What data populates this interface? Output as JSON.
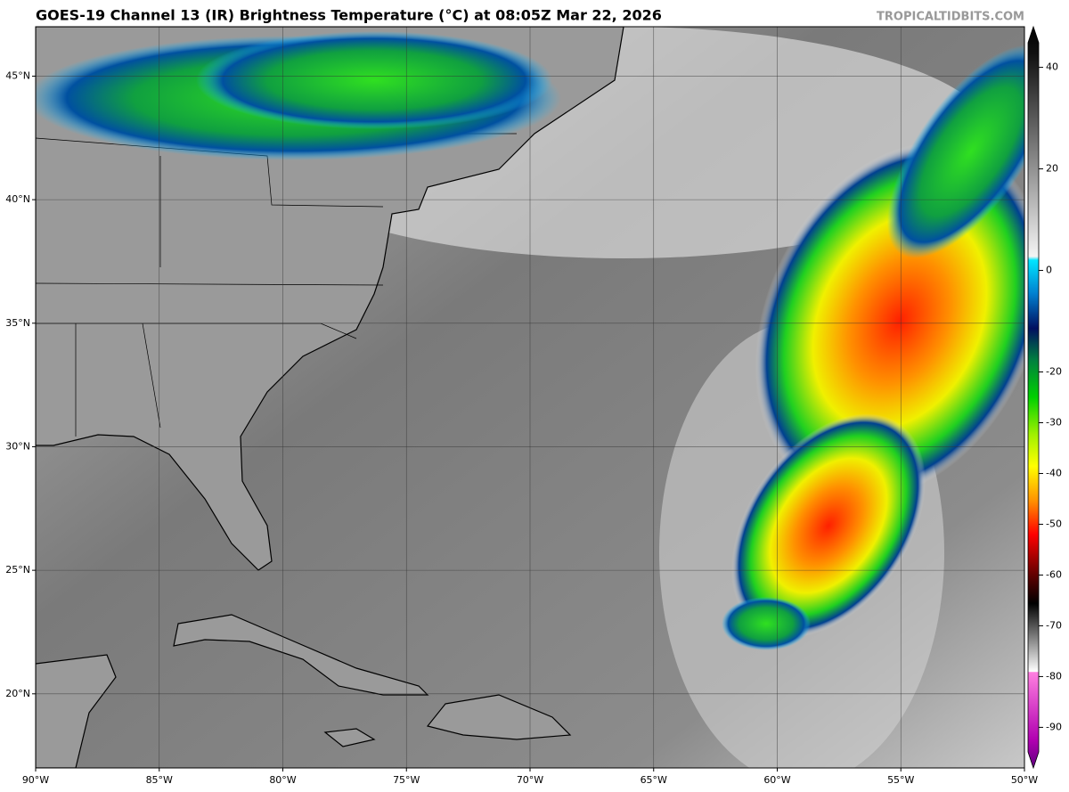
{
  "header": {
    "title": "GOES-19 Channel 13 (IR) Brightness Temperature (°C) at 08:05Z Mar 22, 2026",
    "watermark": "TROPICALTIDBITS.COM"
  },
  "map": {
    "lonlim": [
      -90,
      -50
    ],
    "latlim": [
      17,
      47
    ],
    "lonticks": [
      {
        "value": -90,
        "label": "90°W"
      },
      {
        "value": -85,
        "label": "85°W"
      },
      {
        "value": -80,
        "label": "80°W"
      },
      {
        "value": -75,
        "label": "75°W"
      },
      {
        "value": -70,
        "label": "70°W"
      },
      {
        "value": -65,
        "label": "65°W"
      },
      {
        "value": -60,
        "label": "60°W"
      },
      {
        "value": -55,
        "label": "55°W"
      },
      {
        "value": -50,
        "label": "50°W"
      }
    ],
    "latticks": [
      {
        "value": 20,
        "label": "20°N"
      },
      {
        "value": 25,
        "label": "25°N"
      },
      {
        "value": 30,
        "label": "30°N"
      },
      {
        "value": 35,
        "label": "35°N"
      },
      {
        "value": 40,
        "label": "40°N"
      },
      {
        "value": 45,
        "label": "45°N"
      }
    ],
    "grid": true
  },
  "colorbar": {
    "lim": [
      -98,
      48
    ],
    "ticks": [
      40,
      20,
      0,
      -20,
      -30,
      -40,
      -50,
      -60,
      -70,
      -80,
      -90
    ]
  }
}
